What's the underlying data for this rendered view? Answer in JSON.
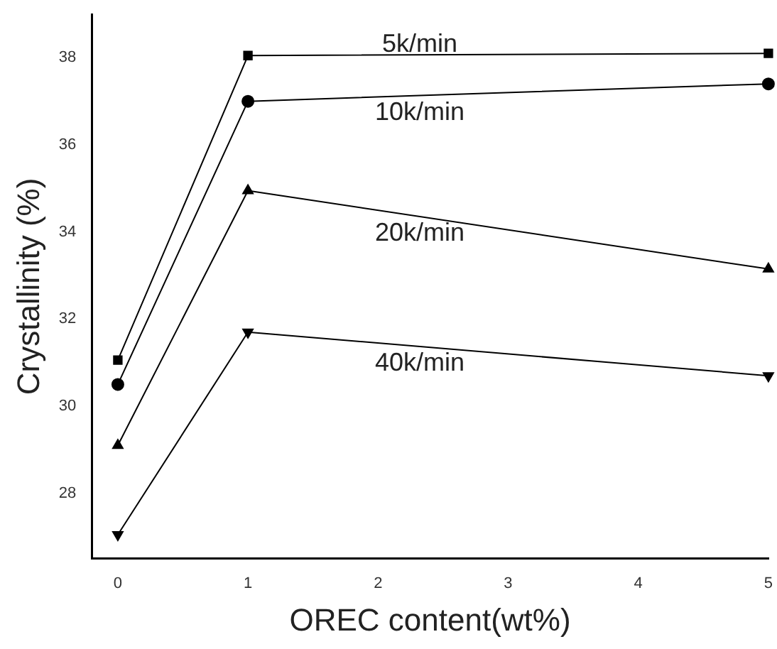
{
  "chart_data": {
    "type": "line",
    "xlabel": "OREC content(wt%)",
    "ylabel": "Crystallinity (%)",
    "x": [
      0,
      1,
      5
    ],
    "series": [
      {
        "name": "5k/min",
        "color": "#000000",
        "marker": "square",
        "values": [
          31.06,
          38.05,
          38.1
        ]
      },
      {
        "name": "10k/min",
        "color": "#000000",
        "marker": "circle",
        "values": [
          30.5,
          37.0,
          37.4
        ]
      },
      {
        "name": "20k/min",
        "color": "#000000",
        "marker": "triangle",
        "values": [
          29.1,
          34.95,
          33.15
        ]
      },
      {
        "name": "40k/min",
        "color": "#000000",
        "marker": "triangle-down",
        "values": [
          27.05,
          31.7,
          30.7
        ]
      }
    ],
    "xlim": [
      -0.2,
      5
    ],
    "xticks": [
      0,
      1,
      2,
      3,
      4,
      5
    ],
    "ylim": [
      26.5,
      39
    ],
    "yticks": [
      28,
      30,
      32,
      34,
      36,
      38
    ],
    "grid": false,
    "legend": false,
    "line_style": "solid"
  }
}
